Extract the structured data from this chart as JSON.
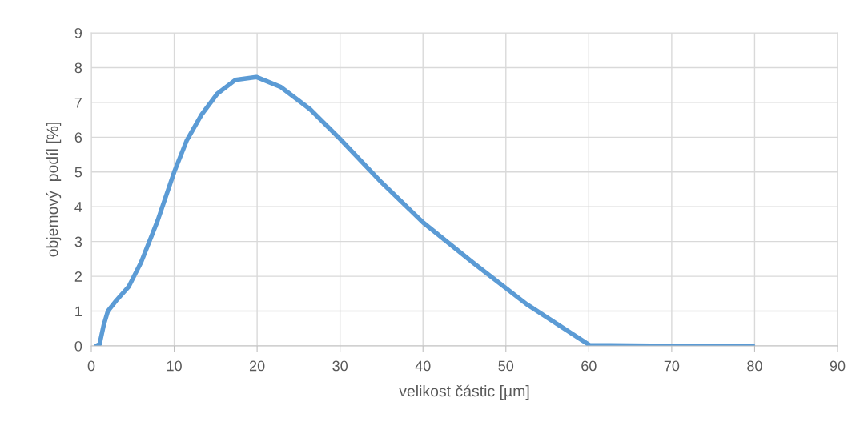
{
  "chart_data": {
    "type": "line",
    "xlabel": "velikost částic [µm]",
    "ylabel": "objemový  podíl [%]",
    "series": [
      {
        "color": "#5b9bd5",
        "x": [
          0.6,
          1.0,
          1.5,
          2,
          3,
          4.5,
          6,
          8,
          10,
          11.5,
          13.3,
          15.2,
          17.4,
          19.9,
          22.8,
          26.4,
          30,
          35,
          40,
          46,
          52.5,
          60.1,
          65,
          70,
          79.8
        ],
        "values": [
          0,
          0.05,
          0.6,
          1.0,
          1.3,
          1.7,
          2.4,
          3.6,
          5.0,
          5.9,
          6.65,
          7.25,
          7.65,
          7.73,
          7.45,
          6.8,
          5.95,
          4.7,
          3.55,
          2.4,
          1.2,
          0.02,
          0.01,
          0,
          0
        ]
      }
    ],
    "xlim": [
      0,
      90
    ],
    "xticks": [
      0,
      10,
      20,
      30,
      40,
      50,
      60,
      70,
      80,
      90
    ],
    "ylim": [
      0,
      9
    ],
    "yticks": [
      0,
      1,
      2,
      3,
      4,
      5,
      6,
      7,
      8,
      9
    ],
    "grid": true,
    "marker": "none",
    "line_style": "solid"
  }
}
